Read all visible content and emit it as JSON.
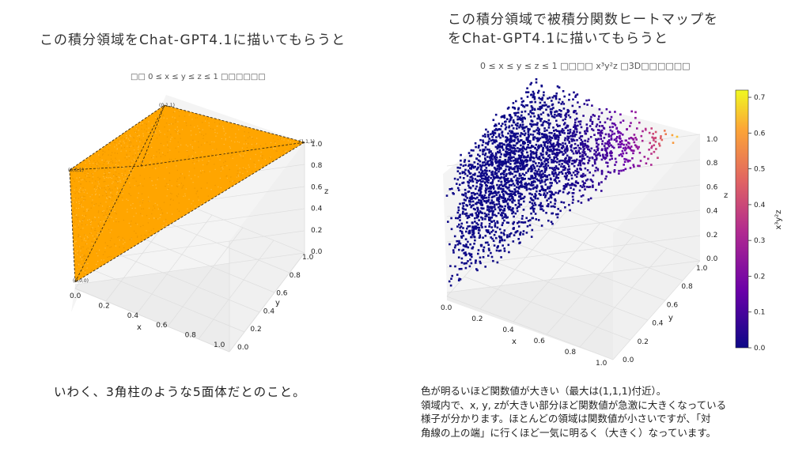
{
  "left": {
    "heading": "この積分領域をChat-GPT4.1に描いてもらうと",
    "plot_title": "□□ 0 ≤ x ≤ y ≤ z ≤ 1 □□□□□□",
    "caption": "いわく、3角柱のような5面体だとのこと。",
    "fill_color": "#ffa500",
    "vertex_labels": {
      "v000": "(0,0,0)",
      "v001": "(0,0,1)",
      "v011": "(0,1,1)",
      "v111": "(1,1,1)"
    },
    "x_ticks": [
      "0.0",
      "0.2",
      "0.4",
      "0.6",
      "0.8",
      "1.0"
    ],
    "y_ticks": [
      "0.0",
      "0.2",
      "0.4",
      "0.6",
      "0.8",
      "1.0"
    ],
    "z_ticks": [
      "0.0",
      "0.2",
      "0.4",
      "0.6",
      "0.8",
      "1.0"
    ],
    "xlabel": "x",
    "ylabel": "y",
    "zlabel": "z"
  },
  "right": {
    "heading_line1": "この積分領域で被積分関数ヒートマップを",
    "heading_line2": "をChat-GPT4.1に描いてもらうと",
    "plot_title": "0 ≤ x ≤ y ≤ z ≤ 1 □□□□ x³y²z □3D□□□□□□",
    "x_ticks": [
      "0.0",
      "0.2",
      "0.4",
      "0.6",
      "0.8",
      "1.0"
    ],
    "y_ticks": [
      "0.0",
      "0.2",
      "0.4",
      "0.6",
      "0.8",
      "1.0"
    ],
    "z_ticks": [
      "0.0",
      "0.2",
      "0.4",
      "0.6",
      "0.8",
      "1.0"
    ],
    "xlabel": "x",
    "ylabel": "y",
    "zlabel": "z",
    "colorbar_label": "x³y²z",
    "colorbar_ticks": [
      "0.7",
      "0.6",
      "0.5",
      "0.4",
      "0.3",
      "0.2",
      "0.1",
      "0.0"
    ],
    "colorbar_range": [
      0,
      0.72
    ],
    "colormap": [
      "#0d0887",
      "#6a00a8",
      "#b12a90",
      "#e16462",
      "#fca636",
      "#f0f921"
    ],
    "description": [
      "色が明るいほど関数値が大きい（最大は(1,1,1)付近）。",
      "領域内で、x, y, zが大きい部分ほど関数値が急激に大きくなっている",
      "様子が分かります。ほとんどの領域は関数値が小さいですが、「対",
      "角線の上の端」に行くほど一気に明るく（大きく）なっています。"
    ]
  }
}
